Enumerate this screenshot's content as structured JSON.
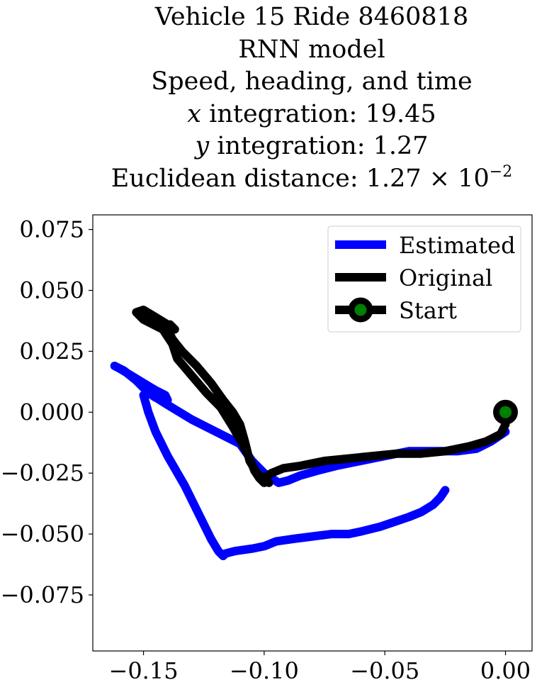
{
  "title_lines": {
    "l1": "Vehicle 15 Ride 8460818",
    "l2": "RNN model",
    "l3": "Speed, heading, and time",
    "l4_var": "x",
    "l4_text": " integration: 19.45",
    "l5_var": "y",
    "l5_text": " integration: 1.27",
    "l6_text": "Euclidean distance: 1.27 × 10",
    "l6_exp": "−2"
  },
  "chart_data": {
    "type": "line",
    "title": "Vehicle 15 Ride 8460818 / RNN model / Speed, heading, and time / x integration: 19.45 / y integration: 1.27 / Euclidean distance: 1.27 × 10^-2",
    "xlabel": "",
    "ylabel": "",
    "xlim": [
      -0.171,
      0.011
    ],
    "ylim": [
      -0.098,
      0.081
    ],
    "x_ticks": [
      -0.15,
      -0.1,
      -0.05,
      0.0
    ],
    "x_tick_labels": [
      "−0.15",
      "−0.10",
      "−0.05",
      "0.00"
    ],
    "y_ticks": [
      0.075,
      0.05,
      0.025,
      0.0,
      -0.025,
      -0.05,
      -0.075
    ],
    "y_tick_labels": [
      "0.075",
      "0.050",
      "0.025",
      "0.000",
      "−0.025",
      "−0.050",
      "−0.075"
    ],
    "grid": false,
    "legend_position": "top-right",
    "legend": [
      {
        "label": "Estimated",
        "color": "#0000ff"
      },
      {
        "label": "Original",
        "color": "#000000"
      },
      {
        "label": "Start",
        "color": "#000000",
        "marker": "circle",
        "marker_face": "#008000"
      }
    ],
    "series": [
      {
        "name": "Estimated",
        "color": "#0000ff",
        "x": [
          0.0,
          -0.006,
          -0.012,
          -0.02,
          -0.03,
          -0.04,
          -0.05,
          -0.06,
          -0.07,
          -0.078,
          -0.085,
          -0.09,
          -0.094,
          -0.097,
          -0.1,
          -0.105,
          -0.11,
          -0.12,
          -0.13,
          -0.14,
          -0.148,
          -0.153,
          -0.158,
          -0.162,
          -0.16,
          -0.155,
          -0.15,
          -0.145,
          -0.141,
          -0.14,
          -0.145,
          -0.148,
          -0.15,
          -0.148,
          -0.145,
          -0.14,
          -0.133,
          -0.127,
          -0.122,
          -0.119,
          -0.117,
          -0.116,
          -0.112,
          -0.105,
          -0.1,
          -0.095,
          -0.088,
          -0.08,
          -0.072,
          -0.065,
          -0.06,
          -0.052,
          -0.046,
          -0.04,
          -0.035,
          -0.03,
          -0.027,
          -0.025
        ],
        "y": [
          -0.008,
          -0.012,
          -0.015,
          -0.016,
          -0.016,
          -0.016,
          -0.018,
          -0.02,
          -0.022,
          -0.024,
          -0.026,
          -0.028,
          -0.029,
          -0.027,
          -0.025,
          -0.02,
          -0.013,
          -0.008,
          -0.003,
          0.003,
          0.008,
          0.013,
          0.017,
          0.019,
          0.018,
          0.015,
          0.012,
          0.009,
          0.007,
          0.005,
          0.006,
          0.008,
          0.007,
          0.0,
          -0.008,
          -0.018,
          -0.03,
          -0.042,
          -0.052,
          -0.057,
          -0.059,
          -0.058,
          -0.057,
          -0.056,
          -0.055,
          -0.053,
          -0.052,
          -0.051,
          -0.05,
          -0.05,
          -0.049,
          -0.047,
          -0.045,
          -0.043,
          -0.041,
          -0.038,
          -0.035,
          -0.032
        ]
      },
      {
        "name": "Original",
        "color": "#000000",
        "x": [
          0.0,
          -0.002,
          -0.008,
          -0.015,
          -0.025,
          -0.035,
          -0.045,
          -0.055,
          -0.065,
          -0.075,
          -0.085,
          -0.092,
          -0.097,
          -0.1,
          -0.098,
          -0.103,
          -0.106,
          -0.108,
          -0.11,
          -0.113,
          -0.117,
          -0.122,
          -0.128,
          -0.134,
          -0.138,
          -0.14,
          -0.139,
          -0.137,
          -0.14,
          -0.145,
          -0.15,
          -0.153,
          -0.15,
          -0.146,
          -0.142,
          -0.14,
          -0.138,
          -0.136,
          -0.13,
          -0.124,
          -0.118,
          -0.113,
          -0.109,
          -0.106,
          -0.104,
          -0.102,
          -0.1
        ],
        "y": [
          -0.005,
          -0.009,
          -0.012,
          -0.014,
          -0.016,
          -0.017,
          -0.017,
          -0.018,
          -0.019,
          -0.02,
          -0.022,
          -0.023,
          -0.025,
          -0.027,
          -0.029,
          -0.025,
          -0.02,
          -0.012,
          -0.005,
          0.0,
          0.005,
          0.012,
          0.019,
          0.025,
          0.03,
          0.034,
          0.036,
          0.034,
          0.036,
          0.039,
          0.042,
          0.041,
          0.038,
          0.036,
          0.034,
          0.031,
          0.028,
          0.022,
          0.015,
          0.008,
          0.002,
          -0.006,
          -0.013,
          -0.019,
          -0.024,
          -0.027,
          -0.029
        ]
      }
    ],
    "start_point": {
      "x": 0.0,
      "y": 0.0
    }
  }
}
